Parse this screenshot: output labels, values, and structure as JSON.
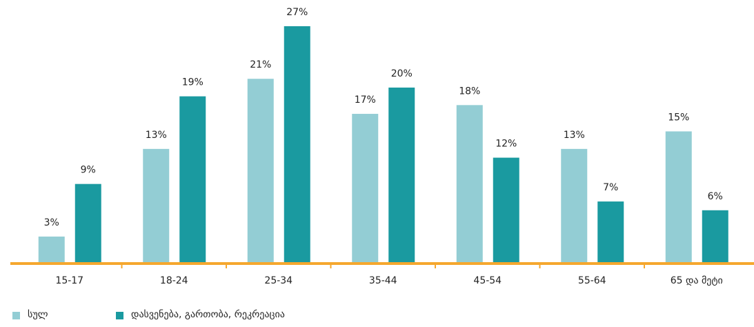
{
  "chart_data": {
    "type": "bar",
    "categories": [
      "15-17",
      "18-24",
      "25-34",
      "35-44",
      "45-54",
      "55-64",
      "65 და მეტი"
    ],
    "series": [
      {
        "name": "სულ",
        "color": "#93cdd4",
        "values": [
          3,
          13,
          21,
          17,
          18,
          13,
          15
        ],
        "value_labels": [
          "3%",
          "13%",
          "21%",
          "17%",
          "18%",
          "13%",
          "15%"
        ]
      },
      {
        "name": "დასვენება, გართობა, რეკრეაცია",
        "color": "#1a9aa0",
        "values": [
          9,
          19,
          27,
          20,
          12,
          7,
          6
        ],
        "value_labels": [
          "9%",
          "19%",
          "27%",
          "20%",
          "12%",
          "7%",
          "6%"
        ]
      }
    ],
    "axis_color": "#f5a72e",
    "legend": "bottom-left"
  }
}
